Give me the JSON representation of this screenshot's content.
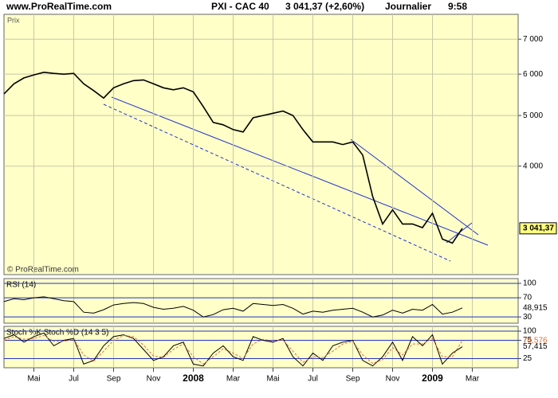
{
  "header": {
    "site": "www.ProRealTime.com",
    "title": "PXI - CAC 40",
    "quote": "3 041,37 (+2,60%)",
    "period": "Journalier",
    "time": "9:58"
  },
  "chart_data": [
    {
      "type": "line",
      "label": "Prix",
      "footer": "© ProRealTime.com",
      "log_scale": true,
      "grid": true,
      "color": "#000000",
      "categories": [
        null,
        null,
        null,
        "Mai",
        null,
        null,
        null,
        "Jul",
        null,
        null,
        null,
        "Sep",
        null,
        null,
        null,
        "Nov",
        null,
        null,
        null,
        "2008",
        null,
        null,
        null,
        "Mar",
        null,
        null,
        null,
        "Mai",
        null,
        null,
        null,
        "Jul",
        null,
        null,
        null,
        "Sep",
        null,
        null,
        null,
        "Nov",
        null,
        null,
        null,
        "2009",
        null,
        null,
        null,
        "Mar"
      ],
      "values": [
        5500,
        5750,
        5900,
        5980,
        6050,
        6020,
        6000,
        6020,
        5750,
        5580,
        5400,
        5650,
        5750,
        5830,
        5850,
        5750,
        5650,
        5600,
        5650,
        5550,
        5200,
        4850,
        4800,
        4700,
        4650,
        4950,
        5000,
        5050,
        5100,
        5000,
        4700,
        4450,
        4450,
        4450,
        4400,
        4450,
        4200,
        3500,
        3100,
        3300,
        3100,
        3100,
        3050,
        3250,
        2900,
        2850,
        3041.37,
        null
      ],
      "value_labels": [
        null,
        null,
        null,
        null,
        null,
        null,
        null,
        null,
        null,
        null,
        null,
        null,
        null,
        null,
        null,
        null,
        null,
        null,
        null,
        null,
        null,
        null,
        null,
        null,
        null,
        null,
        null,
        null,
        null,
        null,
        null,
        null,
        null,
        null,
        null,
        null,
        null,
        null,
        null,
        null,
        null,
        null,
        null,
        null,
        null,
        null,
        "3 041,37",
        null
      ],
      "ylim": [
        2480,
        7810
      ],
      "yticks": [
        {
          "value": 4000,
          "label": "4 000"
        },
        {
          "value": 5000,
          "label": "5 000"
        },
        {
          "value": 6000,
          "label": "6 000"
        },
        {
          "value": 7000,
          "label": "7 000"
        }
      ]
    },
    {
      "type": "line",
      "label": "RSI (14)",
      "color": "#000000",
      "ylim": [
        17,
        110
      ],
      "yticks": [
        30,
        70,
        100
      ],
      "values": [
        62,
        68,
        66,
        70,
        72,
        68,
        64,
        62,
        40,
        38,
        45,
        55,
        58,
        60,
        58,
        50,
        46,
        48,
        52,
        44,
        30,
        35,
        45,
        48,
        42,
        58,
        56,
        54,
        56,
        48,
        36,
        42,
        40,
        44,
        46,
        48,
        40,
        30,
        34,
        44,
        38,
        46,
        44,
        56,
        36,
        40,
        48.915,
        null
      ],
      "value_labels": [
        null,
        null,
        null,
        null,
        null,
        null,
        null,
        null,
        null,
        null,
        null,
        null,
        null,
        null,
        null,
        null,
        null,
        null,
        null,
        null,
        null,
        null,
        null,
        null,
        null,
        null,
        null,
        null,
        null,
        null,
        null,
        null,
        null,
        null,
        null,
        null,
        null,
        null,
        null,
        null,
        null,
        null,
        null,
        null,
        null,
        null,
        "48,915",
        null
      ]
    },
    {
      "type": "line",
      "label": "Stoch %K Stoch %D (14 3 5)",
      "ylim": [
        0,
        113
      ],
      "yticks": [
        25,
        75,
        100
      ],
      "series": [
        {
          "name": "Stoch %K",
          "color": "#000000",
          "values": [
            80,
            90,
            70,
            85,
            95,
            60,
            75,
            80,
            10,
            20,
            60,
            85,
            90,
            80,
            50,
            20,
            30,
            60,
            70,
            10,
            5,
            40,
            60,
            30,
            20,
            85,
            75,
            70,
            80,
            30,
            5,
            40,
            20,
            60,
            70,
            75,
            20,
            5,
            30,
            70,
            20,
            85,
            60,
            90,
            10,
            40,
            57.415,
            null
          ],
          "value_labels": [
            null,
            null,
            null,
            null,
            null,
            null,
            null,
            null,
            null,
            null,
            null,
            null,
            null,
            null,
            null,
            null,
            null,
            null,
            null,
            null,
            null,
            null,
            null,
            null,
            null,
            null,
            null,
            null,
            null,
            null,
            null,
            null,
            null,
            null,
            null,
            null,
            null,
            null,
            null,
            null,
            null,
            null,
            null,
            null,
            null,
            null,
            "57,415",
            null
          ]
        },
        {
          "name": "Stoch %D",
          "color": "#e0703a",
          "values": [
            75,
            85,
            78,
            80,
            88,
            72,
            72,
            78,
            35,
            18,
            45,
            75,
            88,
            85,
            62,
            32,
            28,
            50,
            65,
            30,
            10,
            30,
            52,
            40,
            25,
            65,
            78,
            72,
            76,
            45,
            15,
            30,
            28,
            45,
            65,
            72,
            35,
            12,
            22,
            55,
            35,
            65,
            65,
            80,
            30,
            30,
            74.576,
            null
          ],
          "value_labels": [
            null,
            null,
            null,
            null,
            null,
            null,
            null,
            null,
            null,
            null,
            null,
            null,
            null,
            null,
            null,
            null,
            null,
            null,
            null,
            null,
            null,
            null,
            null,
            null,
            null,
            null,
            null,
            null,
            null,
            null,
            null,
            null,
            null,
            null,
            null,
            null,
            null,
            null,
            null,
            null,
            null,
            null,
            null,
            null,
            null,
            null,
            "74,576",
            null
          ]
        }
      ]
    }
  ]
}
